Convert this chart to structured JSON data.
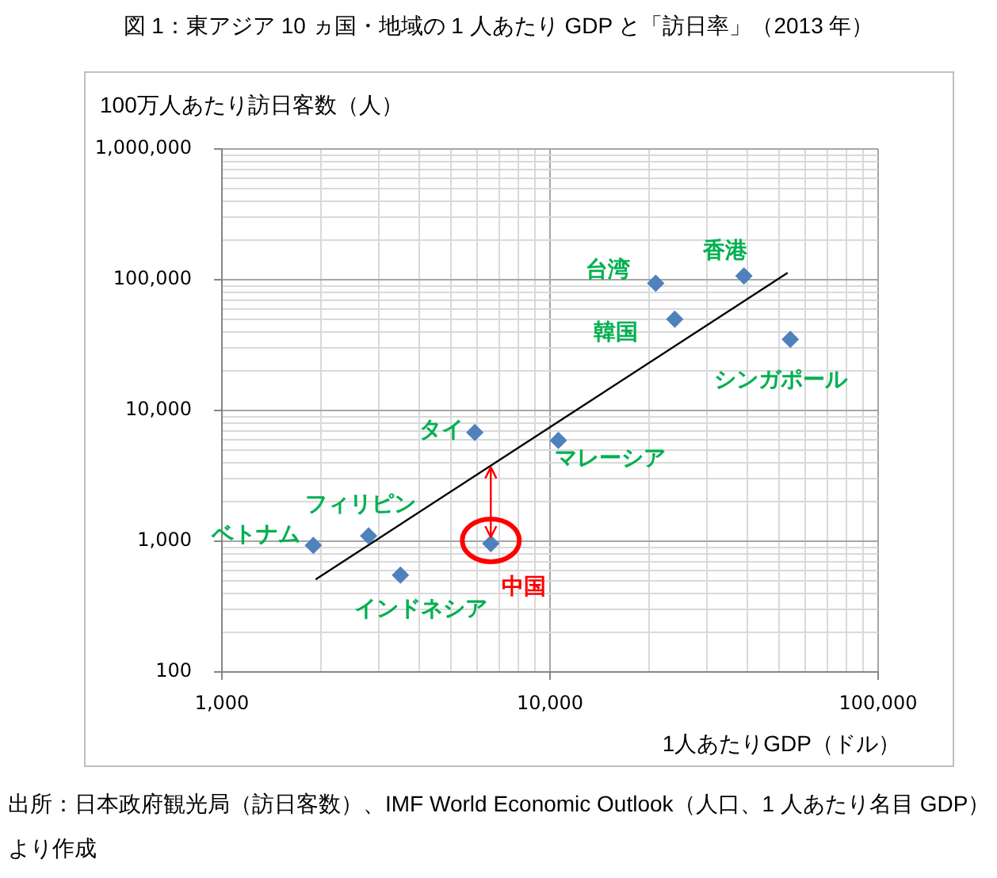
{
  "chart_data": {
    "type": "scatter",
    "title": "図 1：東アジア 10 ヵ国・地域の 1 人あたり GDP と「訪日率」（2013 年）",
    "xlabel": "1人あたりGDP（ドル）",
    "ylabel": "100万人あたり訪日客数（人）",
    "log": "xy",
    "grid": true,
    "marker": "diamond",
    "xlim": [
      1000,
      100000
    ],
    "xticks": [
      {
        "value": 1000,
        "label": "1,000"
      },
      {
        "value": 2000,
        "label": null
      },
      {
        "value": 3000,
        "label": null
      },
      {
        "value": 4000,
        "label": null
      },
      {
        "value": 5000,
        "label": null
      },
      {
        "value": 6000,
        "label": null
      },
      {
        "value": 7000,
        "label": null
      },
      {
        "value": 8000,
        "label": null
      },
      {
        "value": 9000,
        "label": null
      },
      {
        "value": 10000,
        "label": "10,000"
      },
      {
        "value": 20000,
        "label": null
      },
      {
        "value": 30000,
        "label": null
      },
      {
        "value": 40000,
        "label": null
      },
      {
        "value": 50000,
        "label": null
      },
      {
        "value": 60000,
        "label": null
      },
      {
        "value": 70000,
        "label": null
      },
      {
        "value": 80000,
        "label": null
      },
      {
        "value": 90000,
        "label": null
      },
      {
        "value": 100000,
        "label": "100,000"
      }
    ],
    "ylim": [
      100,
      1000000
    ],
    "yticks": [
      100,
      {
        "value": 200,
        "label": null
      },
      {
        "value": 300,
        "label": null
      },
      {
        "value": 400,
        "label": null
      },
      {
        "value": 500,
        "label": null
      },
      {
        "value": 600,
        "label": null
      },
      {
        "value": 700,
        "label": null
      },
      {
        "value": 800,
        "label": null
      },
      {
        "value": 900,
        "label": null
      },
      {
        "value": 1000,
        "label": "1,000"
      },
      {
        "value": 2000,
        "label": null
      },
      {
        "value": 3000,
        "label": null
      },
      {
        "value": 4000,
        "label": null
      },
      {
        "value": 5000,
        "label": null
      },
      {
        "value": 6000,
        "label": null
      },
      {
        "value": 7000,
        "label": null
      },
      {
        "value": 8000,
        "label": null
      },
      {
        "value": 9000,
        "label": null
      },
      {
        "value": 10000,
        "label": "10,000"
      },
      {
        "value": 20000,
        "label": null
      },
      {
        "value": 30000,
        "label": null
      },
      {
        "value": 40000,
        "label": null
      },
      {
        "value": 50000,
        "label": null
      },
      {
        "value": 60000,
        "label": null
      },
      {
        "value": 70000,
        "label": null
      },
      {
        "value": 80000,
        "label": null
      },
      {
        "value": 90000,
        "label": null
      },
      {
        "value": 100000,
        "label": "100,000"
      },
      {
        "value": 200000,
        "label": null
      },
      {
        "value": 300000,
        "label": null
      },
      {
        "value": 400000,
        "label": null
      },
      {
        "value": 500000,
        "label": null
      },
      {
        "value": 600000,
        "label": null
      },
      {
        "value": 700000,
        "label": null
      },
      {
        "value": 800000,
        "label": null
      },
      {
        "value": 900000,
        "label": null
      },
      {
        "value": 1000000,
        "label": "1,000,000"
      }
    ],
    "series": [
      {
        "color": "#4f81bd",
        "x": [
          1900,
          2800,
          3500,
          5900,
          10600,
          21000,
          24000,
          39000,
          54000
        ],
        "values": [
          930,
          1100,
          550,
          6800,
          5900,
          94000,
          50000,
          107000,
          35000
        ]
      },
      {
        "color": "#4f81bd",
        "x": [
          6600
        ],
        "values": [
          960
        ]
      },
      {
        "type": "line",
        "color": "#000000",
        "marker": "none",
        "x": [
          1930,
          53000
        ],
        "values": [
          510,
          113000
        ]
      }
    ],
    "annotations": [
      {
        "text": "ベトナム",
        "x": 1900,
        "y": 930
      },
      {
        "text": "フィリピン",
        "x": 2800,
        "y": 1100
      },
      {
        "text": "インドネシア",
        "x": 3500,
        "y": 550
      },
      {
        "text": "タイ",
        "x": 5900,
        "y": 6800
      },
      {
        "text": "中国",
        "x": 6600,
        "y": 960
      },
      {
        "text": "マレーシア",
        "x": 10600,
        "y": 5900
      },
      {
        "text": "台湾",
        "x": 21000,
        "y": 94000
      },
      {
        "text": "韓国",
        "x": 24000,
        "y": 50000
      },
      {
        "text": "香港",
        "x": 39000,
        "y": 107000
      },
      {
        "text": "シンガポール",
        "x": 54000,
        "y": 35000
      },
      "出所：日本政府観光局（訪日客数）、IMF World Economic Outlook（人口、1 人あたり名目 GDP）より作成"
    ]
  }
}
